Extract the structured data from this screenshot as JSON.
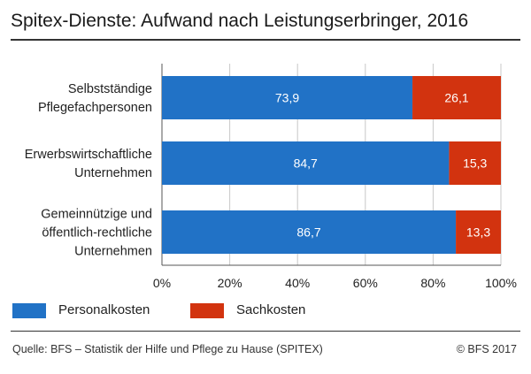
{
  "title": "Spitex-Dienste: Aufwand nach Leistungserbringer, 2016",
  "source": "Quelle: BFS – Statistik der Hilfe und Pflege zu Hause (SPITEX)",
  "copyright": "© BFS 2017",
  "colors": {
    "Personalkosten": "#2172c6",
    "Sachkosten": "#d2330f",
    "grid": "#c8c8c8",
    "axis": "#555555"
  },
  "chart_data": {
    "type": "bar",
    "orientation": "horizontal",
    "stacked": true,
    "categories": [
      [
        "Selbstständige",
        "Pflegefachpersonen"
      ],
      [
        "Erwerbswirtschaftliche",
        "Unternehmen"
      ],
      [
        "Gemeinnützige und",
        "öffentlich-rechtliche",
        "Unternehmen"
      ]
    ],
    "series": [
      {
        "name": "Personalkosten",
        "values": [
          73.9,
          84.7,
          86.7
        ],
        "labels": [
          "73,9",
          "84,7",
          "86,7"
        ]
      },
      {
        "name": "Sachkosten",
        "values": [
          26.1,
          15.3,
          13.3
        ],
        "labels": [
          "26,1",
          "15,3",
          "13,3"
        ]
      }
    ],
    "xlim": [
      0,
      100
    ],
    "xticks": [
      0,
      20,
      40,
      60,
      80,
      100
    ],
    "xtick_labels": [
      "0%",
      "20%",
      "40%",
      "60%",
      "80%",
      "100%"
    ],
    "grid": true,
    "legend_position": "bottom-left"
  }
}
